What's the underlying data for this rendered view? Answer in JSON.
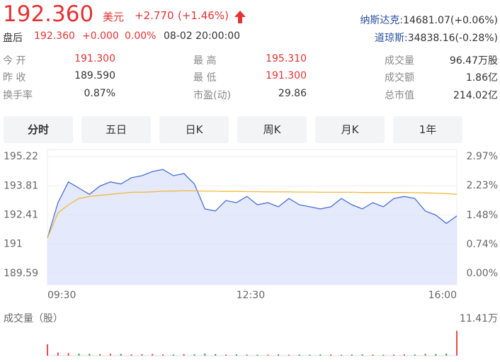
{
  "header": {
    "price": "192.360",
    "currency": "美元",
    "change": "+2.770",
    "change_pct": "(+1.46%)"
  },
  "after_hours": {
    "label": "盘后",
    "price": "192.360",
    "change": "+0.000",
    "change_pct": "0.00%",
    "time": "08-02 20:00:00"
  },
  "indices": [
    {
      "name": "纳斯达克:",
      "value": "14681.07(+0.06%)"
    },
    {
      "name": "道琼斯:",
      "value": "34838.16(-0.28%)"
    }
  ],
  "stats": [
    {
      "label": "今 开",
      "value": "191.300"
    },
    {
      "label": "最 高",
      "value": "195.310"
    },
    {
      "label": "成交量",
      "value": "96.47万股"
    },
    {
      "label": "昨 收",
      "value": "189.590"
    },
    {
      "label": "最 低",
      "value": "191.300"
    },
    {
      "label": "成交额",
      "value": "1.86亿"
    },
    {
      "label": "换手率",
      "value": "0.87%"
    },
    {
      "label": "市盈(动)",
      "value": "29.86"
    },
    {
      "label": "总市值",
      "value": "214.02亿"
    }
  ],
  "tabs": [
    "分时",
    "五日",
    "日K",
    "周K",
    "月K",
    "1年"
  ],
  "chart_data": [
    {
      "type": "line",
      "categories": [
        "09:30",
        null,
        null,
        null,
        null,
        null,
        null,
        null,
        null,
        null,
        null,
        null,
        null,
        null,
        null,
        null,
        null,
        null,
        "12:30",
        null,
        null,
        null,
        null,
        null,
        null,
        null,
        null,
        null,
        null,
        null,
        null,
        null,
        null,
        null,
        null,
        null,
        null,
        null,
        null,
        "16:00"
      ],
      "series": [
        {
          "color": "#4a6fd8",
          "values": [
            191.3,
            193.0,
            194.0,
            193.7,
            193.4,
            193.8,
            194.0,
            193.9,
            194.2,
            194.3,
            194.5,
            194.6,
            194.3,
            194.4,
            193.9,
            192.7,
            192.6,
            193.1,
            193.0,
            193.3,
            192.9,
            193.0,
            192.8,
            193.2,
            192.9,
            192.8,
            192.7,
            192.8,
            193.2,
            192.9,
            192.7,
            193.0,
            192.8,
            193.2,
            193.3,
            193.2,
            192.6,
            192.4,
            192.0,
            192.36
          ]
        },
        {
          "color": "#f0b93a",
          "values": [
            191.3,
            192.5,
            192.9,
            193.2,
            193.3,
            193.35,
            193.4,
            193.45,
            193.5,
            193.5,
            193.52,
            193.55,
            193.56,
            193.57,
            193.57,
            193.55,
            193.55,
            193.54,
            193.54,
            193.53,
            193.53,
            193.52,
            193.52,
            193.52,
            193.51,
            193.51,
            193.5,
            193.5,
            193.5,
            193.5,
            193.49,
            193.49,
            193.49,
            193.49,
            193.49,
            193.48,
            193.47,
            193.46,
            193.44,
            193.4
          ]
        }
      ],
      "ylim": [
        189.59,
        195.22
      ],
      "yticks": [
        189.59,
        191.0,
        192.41,
        193.81,
        195.22
      ],
      "y2lim": [
        0,
        2.97
      ],
      "y2ticks": [
        {
          "value": 0,
          "label": "0.00%"
        },
        {
          "value": 0.74,
          "label": "0.74%"
        },
        {
          "value": 1.48,
          "label": "1.48%"
        },
        {
          "value": 2.23,
          "label": "2.23%"
        },
        {
          "value": 2.97,
          "label": "2.97%"
        }
      ],
      "grid": true,
      "area_color": "#dde3fa"
    },
    {
      "type": "bar",
      "title": "成交量（股）",
      "values": [
        52000,
        14000,
        12000,
        9000,
        8000,
        7000,
        9000,
        8000,
        6000,
        7000,
        8000,
        6000,
        5000,
        7000,
        6000,
        9000,
        7000,
        5000,
        6000,
        5000,
        4000,
        5000,
        6000,
        4000,
        5000,
        4000,
        5000,
        6000,
        4000,
        5000,
        6000,
        5000,
        4000,
        5000,
        6000,
        5000,
        8000,
        7000,
        9000,
        114100
      ],
      "ylim": [
        0,
        114100
      ],
      "yticks": [
        {
          "value": 114100,
          "label": "11.41万"
        }
      ],
      "up_color": "#e84b4b",
      "down_color": "#2aa147"
    }
  ]
}
